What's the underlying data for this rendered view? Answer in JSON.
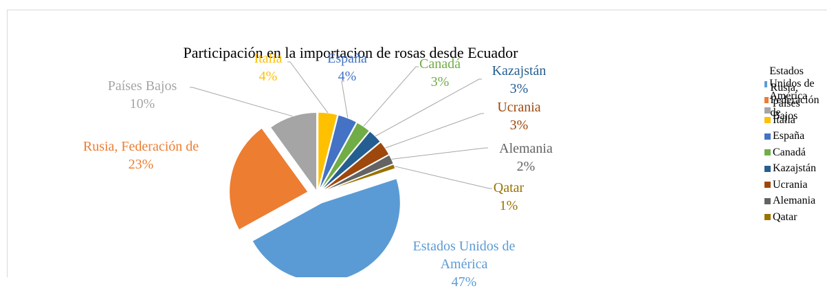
{
  "chart_data": {
    "type": "pie",
    "title": "Participación en la importacion de rosas desde Ecuador",
    "categories": [
      "Estados Unidos de América",
      "Rusia, Federación de",
      "Países Bajos",
      "Italia",
      "España",
      "Canadá",
      "Kazajstán",
      "Ucrania",
      "Alemania",
      "Qatar"
    ],
    "values": [
      47,
      23,
      10,
      4,
      4,
      3,
      3,
      3,
      2,
      1
    ],
    "value_labels": [
      "47%",
      "23%",
      "10%",
      "4%",
      "4%",
      "3%",
      "3%",
      "3%",
      "2%",
      "1%"
    ],
    "colors": [
      "#5b9bd5",
      "#ed7d31",
      "#a5a5a5",
      "#ffc000",
      "#4472c4",
      "#70ad47",
      "#255e91",
      "#9e480e",
      "#636363",
      "#997300"
    ],
    "legend": "right"
  }
}
